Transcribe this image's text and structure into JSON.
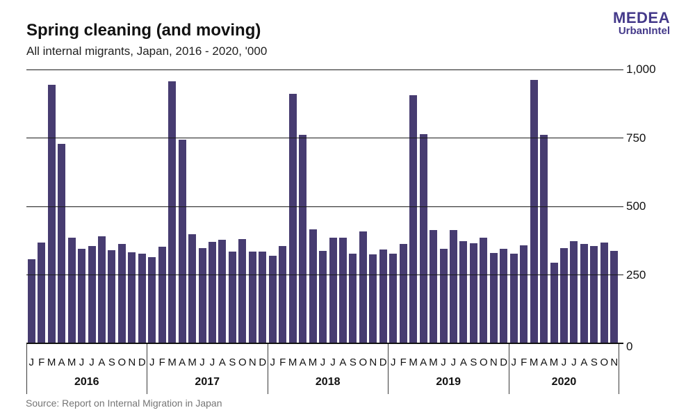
{
  "header": {
    "title": "Spring cleaning (and moving)",
    "subtitle": "All internal migrants, Japan, 2016 - 2020, '000",
    "logo_line1": "MEDEA",
    "logo_line2": "UrbanIntel"
  },
  "footer": {
    "source": "Source: Report on Internal Migration in Japan"
  },
  "colors": {
    "bar": "#473c71",
    "logo": "#44398a",
    "gridline": "#1a1a1a",
    "source_text": "#757575"
  },
  "chart_data": {
    "type": "bar",
    "title": "Spring cleaning (and moving)",
    "subtitle": "All internal migrants, Japan, 2016 - 2020, '000",
    "unit": "thousands of migrants",
    "ylim": [
      0,
      1000
    ],
    "yticks": [
      0,
      250,
      500,
      750,
      1000
    ],
    "ytick_labels": [
      "0",
      "250",
      "500",
      "750",
      "1,000"
    ],
    "grid": "horizontal, drawn over bars",
    "legend": "none",
    "month_letters": [
      "J",
      "F",
      "M",
      "A",
      "M",
      "J",
      "J",
      "A",
      "S",
      "O",
      "N",
      "D"
    ],
    "groups": [
      {
        "year": "2016",
        "values": [
          308,
          368,
          944,
          728,
          386,
          346,
          355,
          391,
          340,
          364,
          333,
          327
        ]
      },
      {
        "year": "2017",
        "values": [
          315,
          353,
          957,
          744,
          399,
          349,
          370,
          378,
          336,
          382,
          334,
          334
        ]
      },
      {
        "year": "2018",
        "values": [
          320,
          356,
          911,
          762,
          416,
          338,
          387,
          386,
          328,
          409,
          325,
          343
        ]
      },
      {
        "year": "2019",
        "values": [
          327,
          363,
          906,
          765,
          415,
          345,
          414,
          374,
          366,
          387,
          330,
          346
        ]
      },
      {
        "year": "2020",
        "values": [
          327,
          357,
          962,
          761,
          295,
          347,
          374,
          364,
          355,
          367,
          338
        ]
      }
    ]
  }
}
